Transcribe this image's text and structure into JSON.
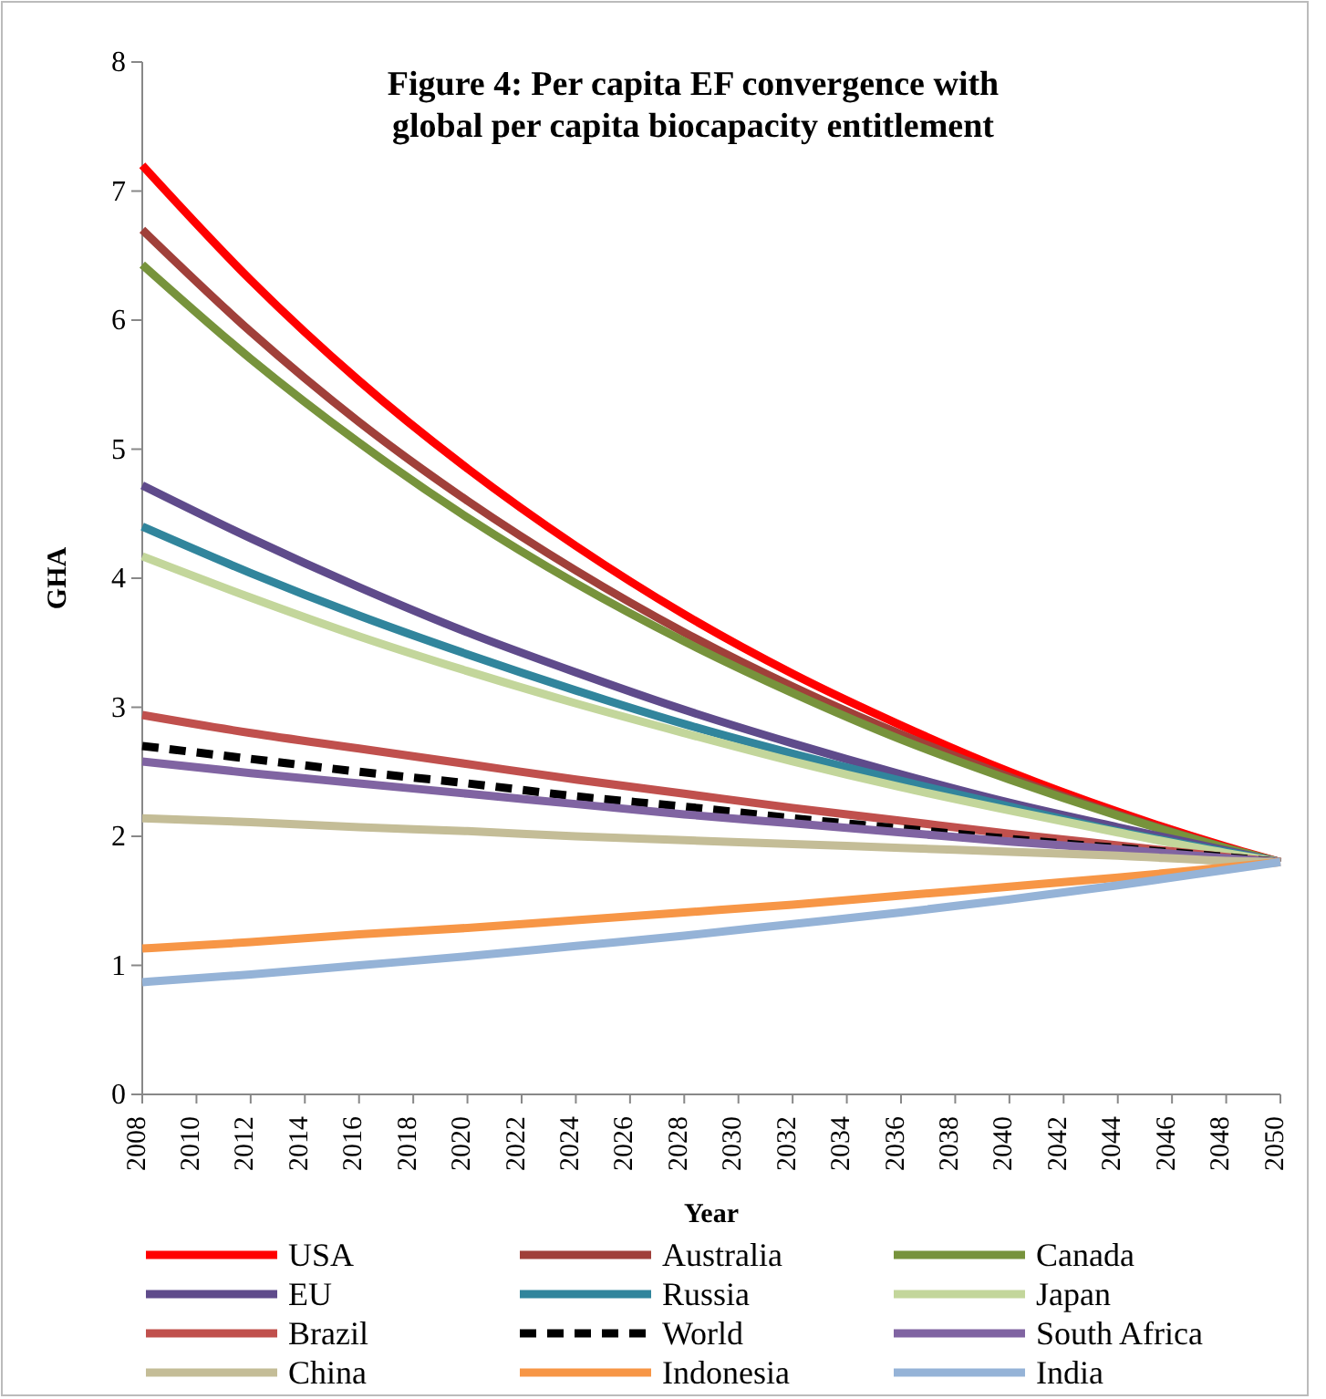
{
  "chart_data": {
    "type": "line",
    "title": "Figure 4: Per capita EF convergence with\nglobal per capita biocapacity entitlement",
    "xlabel": "Year",
    "ylabel": "GHA",
    "x": [
      2008,
      2012,
      2016,
      2020,
      2024,
      2028,
      2032,
      2036,
      2040,
      2044,
      2048,
      2050
    ],
    "xlim": [
      2008,
      2050
    ],
    "xticks": [
      2008,
      2010,
      2012,
      2014,
      2016,
      2018,
      2020,
      2022,
      2024,
      2026,
      2028,
      2030,
      2032,
      2034,
      2036,
      2038,
      2040,
      2042,
      2044,
      2046,
      2048,
      2050
    ],
    "ylim": [
      0,
      8
    ],
    "yticks": [
      0,
      1,
      2,
      3,
      4,
      5,
      6,
      7,
      8
    ],
    "grid": false,
    "legend": "bottom",
    "marker": "none",
    "series": [
      {
        "name": "USA",
        "color": "#ff0000",
        "values": [
          7.2,
          6.31,
          5.53,
          4.85,
          4.25,
          3.72,
          3.26,
          2.86,
          2.5,
          2.19,
          1.92,
          1.8
        ]
      },
      {
        "name": "Australia",
        "color": "#a0403a",
        "values": [
          6.7,
          5.91,
          5.21,
          4.6,
          4.06,
          3.58,
          3.16,
          2.79,
          2.46,
          2.17,
          1.91,
          1.8
        ]
      },
      {
        "name": "Canada",
        "color": "#77933c",
        "values": [
          6.43,
          5.7,
          5.05,
          4.47,
          3.96,
          3.51,
          3.11,
          2.75,
          2.44,
          2.16,
          1.91,
          1.8
        ]
      },
      {
        "name": "EU",
        "color": "#5f4b8b",
        "values": [
          4.72,
          4.31,
          3.93,
          3.58,
          3.27,
          2.98,
          2.72,
          2.48,
          2.26,
          2.07,
          1.89,
          1.8
        ]
      },
      {
        "name": "Russia",
        "color": "#31859c",
        "values": [
          4.4,
          4.04,
          3.71,
          3.41,
          3.13,
          2.87,
          2.64,
          2.43,
          2.23,
          2.04,
          1.88,
          1.8
        ]
      },
      {
        "name": "Japan",
        "color": "#c3d69b",
        "values": [
          4.17,
          3.85,
          3.55,
          3.28,
          3.03,
          2.8,
          2.58,
          2.38,
          2.2,
          2.03,
          1.87,
          1.8
        ]
      },
      {
        "name": "Brazil",
        "color": "#c0504d",
        "values": [
          2.94,
          2.8,
          2.68,
          2.56,
          2.44,
          2.33,
          2.22,
          2.12,
          2.02,
          1.93,
          1.84,
          1.8
        ]
      },
      {
        "name": "World",
        "color": "#000000",
        "line_style": "dashed",
        "values": [
          2.7,
          2.6,
          2.5,
          2.41,
          2.31,
          2.23,
          2.14,
          2.06,
          1.98,
          1.91,
          1.84,
          1.8
        ]
      },
      {
        "name": "South Africa",
        "color": "#8064a2",
        "values": [
          2.58,
          2.49,
          2.41,
          2.33,
          2.25,
          2.17,
          2.1,
          2.03,
          1.96,
          1.9,
          1.83,
          1.8
        ]
      },
      {
        "name": "China",
        "color": "#c4bd97",
        "values": [
          2.14,
          2.11,
          2.07,
          2.04,
          2.0,
          1.97,
          1.94,
          1.91,
          1.88,
          1.85,
          1.81,
          1.8
        ]
      },
      {
        "name": "Indonesia",
        "color": "#f79646",
        "values": [
          1.13,
          1.18,
          1.24,
          1.29,
          1.35,
          1.41,
          1.47,
          1.54,
          1.61,
          1.68,
          1.76,
          1.8
        ]
      },
      {
        "name": "India",
        "color": "#95b3d7",
        "values": [
          0.87,
          0.93,
          1.0,
          1.07,
          1.15,
          1.23,
          1.32,
          1.41,
          1.51,
          1.62,
          1.74,
          1.8
        ]
      }
    ]
  }
}
